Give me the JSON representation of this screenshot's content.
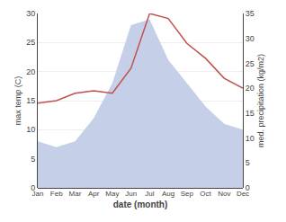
{
  "chart_data": {
    "type": "line",
    "xlabel": "date (month)",
    "ylabel": "max temp (C)",
    "y2label": "med. precipitation (kg/m2)",
    "categories": [
      "Jan",
      "Feb",
      "Mar",
      "Apr",
      "May",
      "Jun",
      "Jul",
      "Aug",
      "Sep",
      "Oct",
      "Nov",
      "Dec"
    ],
    "series": [
      {
        "type": "area",
        "color": "#c5cfe8",
        "values": [
          8,
          7,
          8,
          12,
          18,
          28,
          29,
          22,
          18,
          14,
          11,
          10
        ]
      },
      {
        "type": "line",
        "color": "#c0504d",
        "axis": "y2",
        "values": [
          17,
          17.5,
          19,
          19.5,
          19,
          24,
          35,
          34,
          29,
          26,
          22,
          20
        ]
      }
    ],
    "ylim": [
      0,
      30
    ],
    "yticks": [
      0,
      5,
      10,
      15,
      20,
      25,
      30
    ],
    "y2lim": [
      0,
      35
    ],
    "y2ticks": [
      0,
      5,
      10,
      15,
      20,
      25,
      30,
      35
    ],
    "grid": true
  }
}
